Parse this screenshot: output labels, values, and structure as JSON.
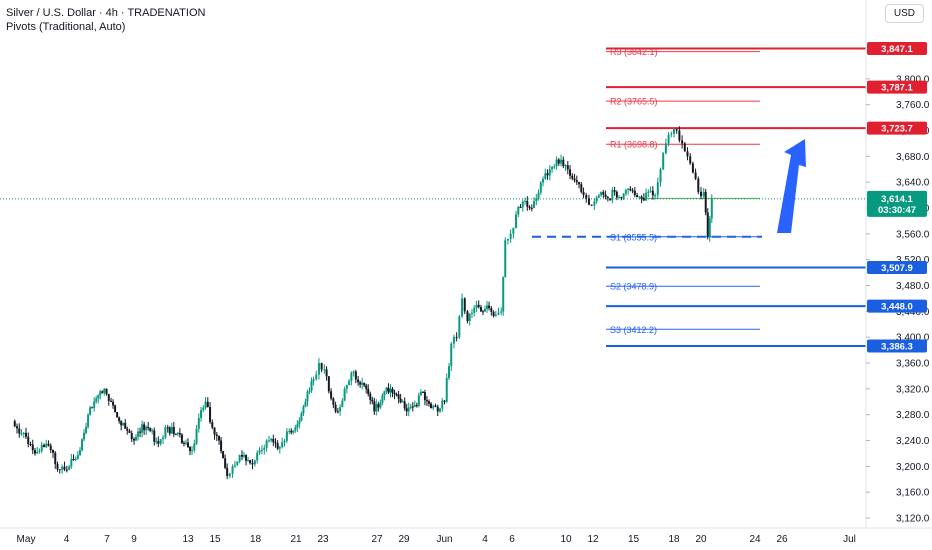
{
  "header": {
    "title": "Silver / U.S. Dollar · 4h · TRADENATION",
    "indicator": "Pivots (Traditional, Auto)"
  },
  "currency": "USD",
  "colors": {
    "up": "#089981",
    "down": "#131722",
    "resistance": "#e02030",
    "support": "#1a5fe0",
    "pivot_r": "#f23645",
    "pivot_s": "#2962ff",
    "pivot_p": "#4caf50",
    "price_tag": "#089981",
    "arrow": "#2962ff"
  },
  "chart_data": {
    "type": "candlestick",
    "symbol": "Silver / U.S. Dollar",
    "interval": "4h",
    "ylim": [
      3100,
      3860
    ],
    "y_ticks": [
      "3,120.0",
      "3,160.0",
      "3,200.0",
      "3,240.0",
      "3,280.0",
      "3,320.0",
      "3,360.0",
      "3,400.0",
      "3,440.0",
      "3,480.0",
      "3,520.0",
      "3,560.0",
      "3,600.0",
      "3,640.0",
      "3,680.0",
      "3,720.0",
      "3,760.0",
      "3,800.0"
    ],
    "x_ticks": [
      {
        "label": "May",
        "day": 0
      },
      {
        "label": "4",
        "day": 3
      },
      {
        "label": "7",
        "day": 6
      },
      {
        "label": "9",
        "day": 8
      },
      {
        "label": "13",
        "day": 12
      },
      {
        "label": "15",
        "day": 14
      },
      {
        "label": "18",
        "day": 17
      },
      {
        "label": "21",
        "day": 20
      },
      {
        "label": "23",
        "day": 22
      },
      {
        "label": "27",
        "day": 26
      },
      {
        "label": "29",
        "day": 28
      },
      {
        "label": "Jun",
        "day": 31
      },
      {
        "label": "4",
        "day": 34
      },
      {
        "label": "6",
        "day": 36
      },
      {
        "label": "10",
        "day": 40
      },
      {
        "label": "12",
        "day": 42
      },
      {
        "label": "15",
        "day": 45
      },
      {
        "label": "18",
        "day": 48
      },
      {
        "label": "20",
        "day": 50
      },
      {
        "label": "24",
        "day": 54
      },
      {
        "label": "26",
        "day": 56
      },
      {
        "label": "Jul",
        "day": 61
      }
    ],
    "current_price": {
      "value": "3,614.1",
      "countdown": "03:30:47",
      "y": 3614.1
    },
    "horizontal_levels": [
      {
        "label": "3,847.1",
        "value": 3847.1,
        "kind": "resistance"
      },
      {
        "label": "3,787.1",
        "value": 3787.1,
        "kind": "resistance"
      },
      {
        "label": "3,723.7",
        "value": 3723.7,
        "kind": "resistance"
      },
      {
        "label": "3,507.9",
        "value": 3507.9,
        "kind": "support"
      },
      {
        "label": "3,448.0",
        "value": 3448.0,
        "kind": "support"
      },
      {
        "label": "3,386.3",
        "value": 3386.3,
        "kind": "support"
      }
    ],
    "dashed_level": {
      "value": 3555.5
    },
    "pivots": [
      {
        "label": "R3 (3842.1)",
        "value": 3842.1,
        "kind": "r"
      },
      {
        "label": "R2 (3765.5)",
        "value": 3765.5,
        "kind": "r"
      },
      {
        "label": "R1 (3698.8)",
        "value": 3698.8,
        "kind": "r"
      },
      {
        "label": "",
        "value": 3615.0,
        "kind": "p"
      },
      {
        "label": "S1 (3555.5)",
        "value": 3555.5,
        "kind": "s"
      },
      {
        "label": "S2 (3478.9)",
        "value": 3478.9,
        "kind": "s"
      },
      {
        "label": "S3 (3412.2)",
        "value": 3412.2,
        "kind": "s"
      }
    ],
    "series": [
      {
        "day": -1.0,
        "close": 3270
      },
      {
        "day": 0.5,
        "close": 3225
      },
      {
        "day": 1.5,
        "close": 3235
      },
      {
        "day": 2.5,
        "close": 3195
      },
      {
        "day": 3.2,
        "close": 3200
      },
      {
        "day": 4.0,
        "close": 3225
      },
      {
        "day": 4.6,
        "close": 3280
      },
      {
        "day": 5.2,
        "close": 3305
      },
      {
        "day": 5.8,
        "close": 3320
      },
      {
        "day": 6.3,
        "close": 3300
      },
      {
        "day": 6.9,
        "close": 3270
      },
      {
        "day": 7.5,
        "close": 3255
      },
      {
        "day": 8.0,
        "close": 3240
      },
      {
        "day": 8.6,
        "close": 3265
      },
      {
        "day": 9.2,
        "close": 3255
      },
      {
        "day": 9.8,
        "close": 3235
      },
      {
        "day": 10.5,
        "close": 3260
      },
      {
        "day": 11.1,
        "close": 3250
      },
      {
        "day": 11.7,
        "close": 3235
      },
      {
        "day": 12.3,
        "close": 3225
      },
      {
        "day": 12.8,
        "close": 3275
      },
      {
        "day": 13.3,
        "close": 3300
      },
      {
        "day": 13.8,
        "close": 3260
      },
      {
        "day": 14.3,
        "close": 3240
      },
      {
        "day": 14.9,
        "close": 3185
      },
      {
        "day": 15.3,
        "close": 3200
      },
      {
        "day": 16.0,
        "close": 3215
      },
      {
        "day": 16.6,
        "close": 3205
      },
      {
        "day": 17.3,
        "close": 3225
      },
      {
        "day": 18.0,
        "close": 3240
      },
      {
        "day": 18.8,
        "close": 3230
      },
      {
        "day": 19.5,
        "close": 3255
      },
      {
        "day": 20.1,
        "close": 3265
      },
      {
        "day": 20.7,
        "close": 3300
      },
      {
        "day": 21.3,
        "close": 3335
      },
      {
        "day": 21.7,
        "close": 3360
      },
      {
        "day": 22.1,
        "close": 3350
      },
      {
        "day": 22.6,
        "close": 3305
      },
      {
        "day": 23.1,
        "close": 3285
      },
      {
        "day": 23.6,
        "close": 3320
      },
      {
        "day": 24.1,
        "close": 3345
      },
      {
        "day": 24.6,
        "close": 3330
      },
      {
        "day": 25.2,
        "close": 3320
      },
      {
        "day": 25.8,
        "close": 3285
      },
      {
        "day": 26.4,
        "close": 3310
      },
      {
        "day": 27.0,
        "close": 3320
      },
      {
        "day": 27.6,
        "close": 3305
      },
      {
        "day": 28.2,
        "close": 3285
      },
      {
        "day": 28.8,
        "close": 3295
      },
      {
        "day": 29.4,
        "close": 3315
      },
      {
        "day": 30.0,
        "close": 3290
      },
      {
        "day": 30.5,
        "close": 3285
      },
      {
        "day": 31.0,
        "close": 3300
      },
      {
        "day": 31.5,
        "close": 3390
      },
      {
        "day": 31.9,
        "close": 3400
      },
      {
        "day": 32.3,
        "close": 3460
      },
      {
        "day": 32.7,
        "close": 3425
      },
      {
        "day": 33.2,
        "close": 3445
      },
      {
        "day": 33.7,
        "close": 3440
      },
      {
        "day": 34.3,
        "close": 3445
      },
      {
        "day": 34.8,
        "close": 3435
      },
      {
        "day": 35.2,
        "close": 3440
      },
      {
        "day": 35.5,
        "close": 3550
      },
      {
        "day": 35.9,
        "close": 3560
      },
      {
        "day": 36.3,
        "close": 3590
      },
      {
        "day": 36.8,
        "close": 3610
      },
      {
        "day": 37.3,
        "close": 3600
      },
      {
        "day": 37.8,
        "close": 3615
      },
      {
        "day": 38.3,
        "close": 3645
      },
      {
        "day": 38.8,
        "close": 3660
      },
      {
        "day": 39.3,
        "close": 3675
      },
      {
        "day": 39.8,
        "close": 3665
      },
      {
        "day": 40.3,
        "close": 3650
      },
      {
        "day": 40.8,
        "close": 3640
      },
      {
        "day": 41.3,
        "close": 3620
      },
      {
        "day": 41.7,
        "close": 3605
      },
      {
        "day": 42.1,
        "close": 3610
      },
      {
        "day": 42.6,
        "close": 3625
      },
      {
        "day": 43.1,
        "close": 3615
      },
      {
        "day": 43.6,
        "close": 3625
      },
      {
        "day": 44.1,
        "close": 3615
      },
      {
        "day": 44.6,
        "close": 3630
      },
      {
        "day": 45.1,
        "close": 3620
      },
      {
        "day": 45.6,
        "close": 3615
      },
      {
        "day": 46.1,
        "close": 3625
      },
      {
        "day": 46.6,
        "close": 3620
      },
      {
        "day": 47.0,
        "close": 3660
      },
      {
        "day": 47.4,
        "close": 3700
      },
      {
        "day": 47.8,
        "close": 3715
      },
      {
        "day": 48.2,
        "close": 3720
      },
      {
        "day": 48.6,
        "close": 3700
      },
      {
        "day": 49.0,
        "close": 3680
      },
      {
        "day": 49.4,
        "close": 3655
      },
      {
        "day": 49.8,
        "close": 3625
      },
      {
        "day": 50.2,
        "close": 3625
      },
      {
        "day": 50.5,
        "close": 3555
      },
      {
        "day": 50.8,
        "close": 3614.1
      }
    ]
  }
}
